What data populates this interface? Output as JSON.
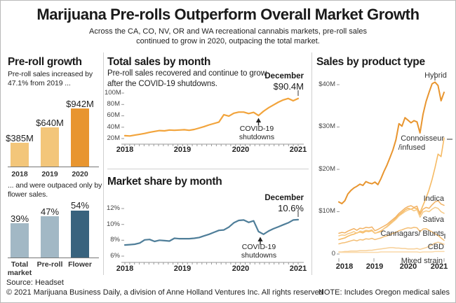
{
  "header": {
    "title": "Marijuana Pre-rolls Outperform Overall Market Growth",
    "subtitle": "Across the CA, CO, NV, OR and WA recreational cannabis markets, pre-roll sales continued to grow in 2020, outpacing the total market."
  },
  "left_panel": {
    "heading": "Pre-roll growth",
    "intro": "Pre-roll sales increased by 47.1% from 2019 ...",
    "outro": "... and were outpaced only by flower sales."
  },
  "middle_panel": {
    "top_heading": "Total sales by month",
    "top_subtitle": "Pre-roll sales recovered and continue to grow after the COVID-19 shutdowns.",
    "bottom_heading": "Market share by month"
  },
  "right_panel": {
    "heading": "Sales by product type"
  },
  "footer": {
    "source": "Source: Headset",
    "copyright": "© 2021 Marijuana Business Daily, a division of Anne Holland Ventures Inc. All rights reserved",
    "note": "NOTE: Includes Oregon medical sales"
  },
  "colors": {
    "orange_dark": "#E8952F",
    "orange_light": "#F3C67A",
    "orange_line": "#F2A43C",
    "blue_line": "#4F7E99",
    "blue_light": "#A2B8C5",
    "blue_dark": "#39637E",
    "connoisseur": "#F6BA63",
    "indica": "#F2B264",
    "sativa": "#F7C984",
    "cannagars": "#F4BE74",
    "cbd": "#F7CF96",
    "mixed": "#FAD9A8"
  },
  "chart_data": [
    {
      "id": "preroll-growth",
      "type": "bar",
      "categories": [
        "2018",
        "2019",
        "2020"
      ],
      "values": [
        385,
        640,
        942
      ],
      "value_labels": [
        "$385M",
        "$640M",
        "$942M"
      ]
    },
    {
      "id": "category-share",
      "type": "bar",
      "categories": [
        "Total market",
        "Pre-roll",
        "Flower"
      ],
      "values": [
        39,
        47,
        54
      ],
      "value_labels": [
        "39%",
        "47%",
        "54%"
      ]
    },
    {
      "id": "total-sales-by-month",
      "type": "line",
      "title": "Total sales by month",
      "x_range": "monthly, Jan 2018 - Dec 2020",
      "x_tick_labels": [
        "2018",
        "2019",
        "2020",
        "2021"
      ],
      "y_tick_labels": [
        "100M",
        "80M",
        "60M",
        "40M",
        "20M"
      ],
      "ylim": [
        20,
        100
      ],
      "values": [
        25,
        24.5,
        26,
        27.5,
        29,
        31,
        32.5,
        34,
        33.5,
        35,
        34.5,
        35,
        35.5,
        34.5,
        36,
        38.5,
        41,
        44,
        46.5,
        49,
        62,
        59.5,
        64.5,
        66.5,
        66.5,
        64,
        66,
        60.5,
        68,
        74,
        79,
        84,
        88,
        90.5,
        86.5,
        90.4
      ],
      "annotations": {
        "endpoint_month": "December",
        "endpoint_value": "$90.4M",
        "event": "COVID-19 shutdowns"
      }
    },
    {
      "id": "market-share-by-month",
      "type": "line",
      "title": "Market share by month",
      "x_range": "monthly, Jan 2018 - Dec 2020",
      "x_tick_labels": [
        "2018",
        "2019",
        "2020",
        "2021"
      ],
      "y_tick_labels": [
        "12%",
        "10%",
        "8%",
        "6%"
      ],
      "ylim": [
        6,
        12
      ],
      "values": [
        7.4,
        7.45,
        7.5,
        7.65,
        8.05,
        8.1,
        7.85,
        8.0,
        7.95,
        7.9,
        8.25,
        8.2,
        8.2,
        8.2,
        8.25,
        8.35,
        8.55,
        8.75,
        9.0,
        9.25,
        9.3,
        9.65,
        10.2,
        10.5,
        10.55,
        10.25,
        10.45,
        9.1,
        8.75,
        9.15,
        9.45,
        9.7,
        9.95,
        10.2,
        10.55,
        10.6
      ],
      "annotations": {
        "endpoint_month": "December",
        "endpoint_value": "10.6%",
        "event": "COVID-19 shutdowns"
      }
    },
    {
      "id": "sales-by-product-type",
      "type": "line",
      "title": "Sales by product type",
      "x_range": "monthly, Jan 2018 - Dec 2020",
      "x_tick_labels": [
        "2018",
        "2019",
        "2020",
        "2021"
      ],
      "y_tick_labels": [
        "$40M",
        "$30M",
        "$20M",
        "$10M",
        "0"
      ],
      "ylim": [
        0,
        44
      ],
      "series": [
        {
          "name": "Hybrid",
          "values": [
            12.3,
            11.9,
            12.6,
            14.2,
            15,
            15.6,
            16,
            16.5,
            16.2,
            17.1,
            16.8,
            16.6,
            17,
            16.4,
            17.8,
            19.5,
            21,
            22.8,
            24.6,
            27,
            30.8,
            30.2,
            32.2,
            31.6,
            31,
            31.5,
            31.2,
            28.6,
            33,
            36,
            38.2,
            40.2,
            40.6,
            39.8,
            36.2,
            38.2
          ]
        },
        {
          "name": "Connoisseur/infused",
          "name_lines": [
            "Connoisseur",
            "/infused"
          ],
          "values": [
            3.4,
            3.6,
            3.8,
            4.2,
            4.5,
            4.7,
            5,
            5.2,
            5,
            5.4,
            5.3,
            5.5,
            4.9,
            5.1,
            5.3,
            6,
            6.5,
            7.2,
            7.8,
            8.5,
            9.2,
            9.8,
            10.4,
            10.8,
            10.6,
            10.9,
            10.7,
            9.8,
            11.5,
            13.2,
            15.2,
            17.6,
            20.4,
            23.6,
            23,
            27.4
          ]
        },
        {
          "name": "Indica",
          "values": [
            4.9,
            5.1,
            5,
            5.4,
            5.7,
            6,
            5.6,
            6.1,
            6,
            6.3,
            6.2,
            6.4,
            5.5,
            5.8,
            6.2,
            6.6,
            7,
            7.6,
            8.2,
            8.8,
            9.6,
            10.2,
            10.8,
            11.2,
            11.4,
            11,
            11.3,
            9.3,
            10.6,
            11,
            10.8,
            11.6,
            12.3,
            12.6,
            11.8,
            11.5
          ]
        },
        {
          "name": "Sativa",
          "values": [
            4.3,
            4.5,
            4.4,
            4.8,
            5,
            5.3,
            4.9,
            5.4,
            5.3,
            5.6,
            5.5,
            5.7,
            4.9,
            5.2,
            5.5,
            6,
            6.4,
            7,
            7.6,
            8.2,
            9,
            9.5,
            10,
            10.4,
            10.6,
            10.2,
            10.5,
            8.7,
            9.9,
            10.2,
            10,
            10.6,
            11,
            10.8,
            10,
            9.6
          ]
        },
        {
          "name": "Cannagars/ Blunts",
          "values": [
            2.4,
            2.6,
            2.7,
            2.9,
            3.1,
            3.3,
            3.1,
            3.4,
            3.3,
            3.6,
            3.5,
            3.7,
            3.4,
            3.6,
            3.8,
            4.1,
            4.3,
            4.6,
            4.9,
            5.1,
            5.5,
            5.7,
            6,
            6.2,
            6.1,
            6.3,
            6.2,
            5.3,
            5.9,
            6,
            5.6,
            5.2,
            4.8,
            4.4,
            3.8,
            3.2
          ]
        },
        {
          "name": "CBD",
          "values": [
            0.5,
            0.5,
            0.6,
            0.6,
            0.7,
            0.7,
            0.7,
            0.8,
            0.8,
            0.8,
            0.9,
            0.9,
            1,
            1.1,
            1.2,
            1.3,
            1.4,
            1.5,
            1.5,
            1.4,
            1.4,
            1.3,
            1.3,
            1.2,
            1.2,
            1.2,
            1.3,
            1.1,
            1.3,
            1.5,
            1.8,
            2.2,
            2.6,
            2.8,
            2.6,
            2.3
          ]
        },
        {
          "name": "Mixed strain",
          "values": [
            0.4,
            0.4,
            0.4,
            0.4,
            0.4,
            0.4,
            0.4,
            0.4,
            0.4,
            0.4,
            0.4,
            0.4,
            0.4,
            0.4,
            0.5,
            0.5,
            0.5,
            0.5,
            0.5,
            0.5,
            0.5,
            0.5,
            0.5,
            0.5,
            0.5,
            0.5,
            0.5,
            0.4,
            0.5,
            0.5,
            0.5,
            0.5,
            0.6,
            0.6,
            0.6,
            0.6
          ]
        }
      ]
    }
  ]
}
